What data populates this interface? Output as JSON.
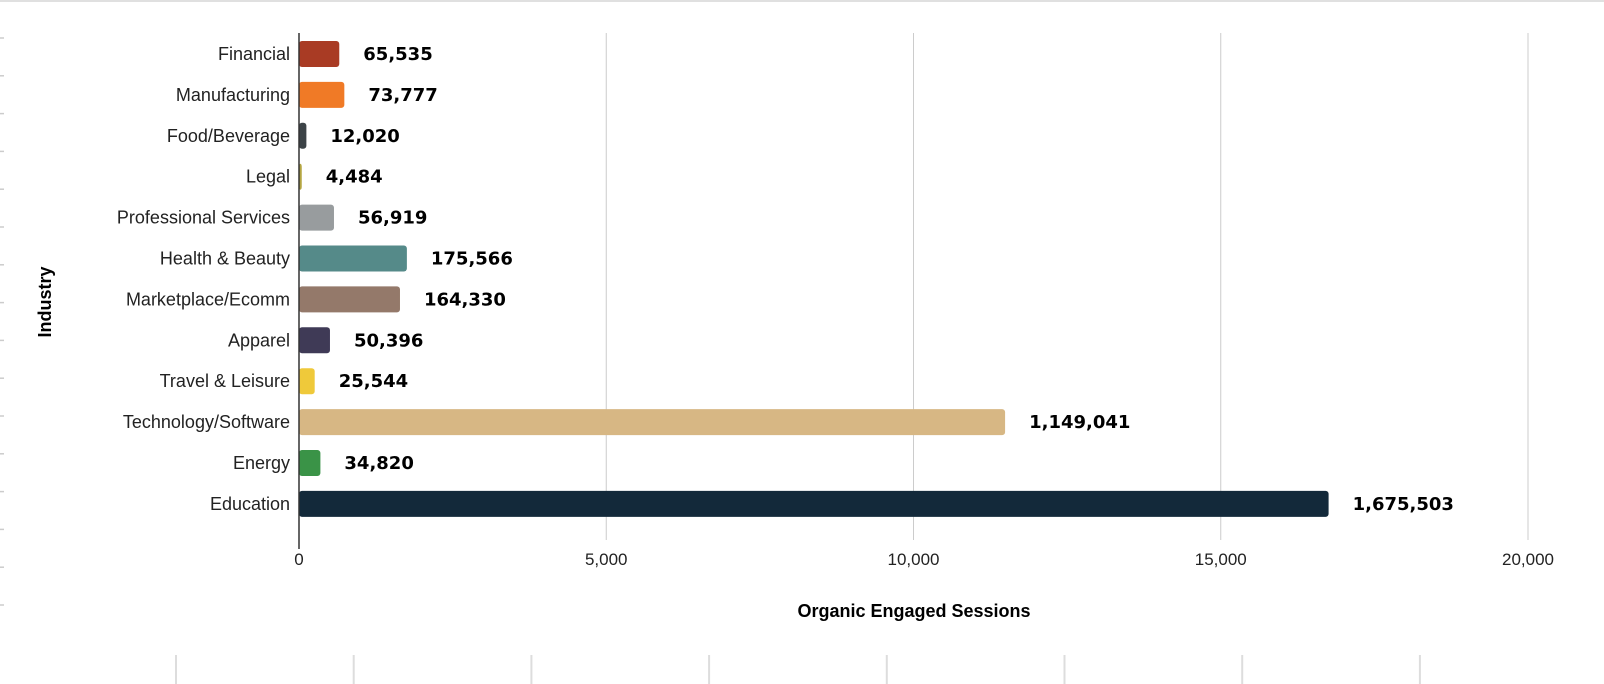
{
  "chart_data": {
    "type": "bar",
    "orientation": "horizontal",
    "title": "",
    "xlabel": "Organic Engaged Sessions",
    "ylabel": "Industry",
    "xlim": [
      0,
      20000
    ],
    "xticks": [
      "0",
      "5,000",
      "10,000",
      "15,000",
      "20,000"
    ],
    "xtick_values": [
      0,
      5000,
      10000,
      15000,
      20000
    ],
    "grid": true,
    "categories": [
      "Financial",
      "Manufacturing",
      "Food/Beverage",
      "Legal",
      "Professional Services",
      "Health & Beauty",
      "Marketplace/Ecomm",
      "Apparel",
      "Travel & Leisure",
      "Technology/Software",
      "Energy",
      "Education"
    ],
    "values": [
      65535,
      73777,
      12020,
      4484,
      56919,
      175566,
      164330,
      50396,
      25544,
      1149041,
      34820,
      1675503
    ],
    "value_labels": [
      "65,535",
      "73,777",
      "12,020",
      "4,484",
      "56,919",
      "175,566",
      "164,330",
      "50,396",
      "25,544",
      "1,149,041",
      "34,820",
      "1,675,503"
    ],
    "colors": [
      "#a93b24",
      "#f07a26",
      "#3c4347",
      "#b5a642",
      "#989c9e",
      "#558a89",
      "#94796a",
      "#3f3a56",
      "#efc93a",
      "#d7b784",
      "#3a9347",
      "#13293a"
    ]
  }
}
